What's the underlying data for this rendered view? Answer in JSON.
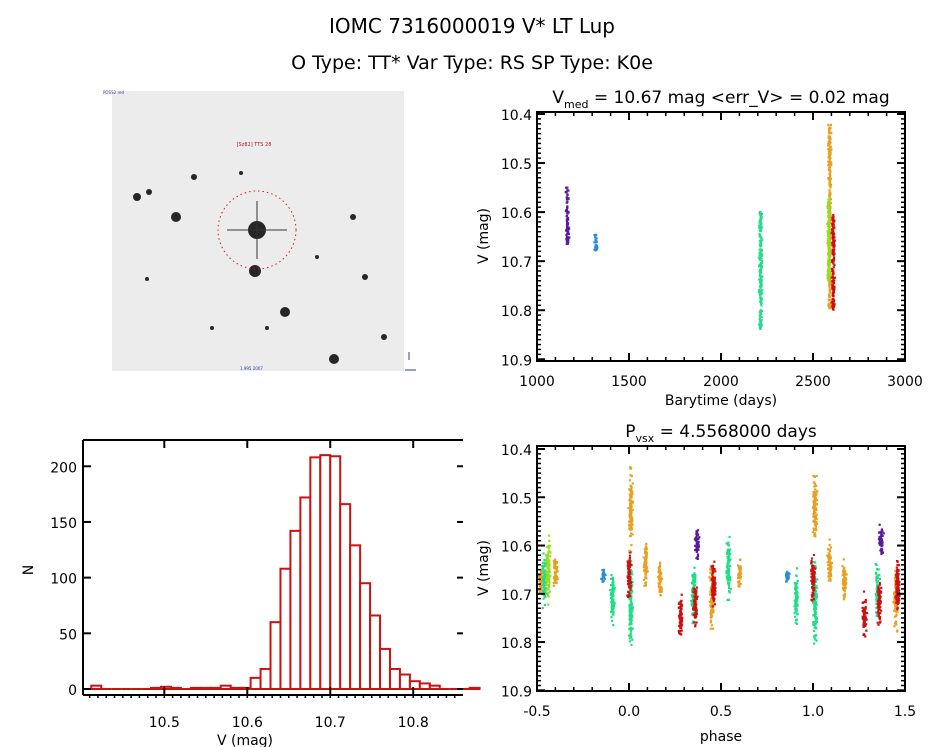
{
  "header": {
    "title_line1": "IOMC 7316000019    V* LT Lup",
    "title_line2": "O Type: TT*  Var Type: RS  SP Type: K0e"
  },
  "finder_chart": {
    "top_left_label": "POSS2 red",
    "target_label": "[Sz82] TTS 28",
    "bottom_center_label": "1.995 2007",
    "north_arrow": "N",
    "east_arrow": "E",
    "colors": {
      "circle": "#cc2020",
      "background": "#ececec"
    }
  },
  "chart_data": [
    {
      "id": "lightcurve",
      "type": "scatter",
      "title": "V_med = 10.67 mag <err_V> = 0.02 mag",
      "title_main": "V",
      "title_sub": "med",
      "title_rest": " = 10.67 mag <err_V> = 0.02 mag",
      "xlabel": "Barytime (days)",
      "ylabel": "V (mag)",
      "xlim": [
        1000,
        3000
      ],
      "ylim": [
        10.9,
        10.4
      ],
      "y_inverted": true,
      "xticks": [
        "1000",
        "1500",
        "2000",
        "2500",
        "3000"
      ],
      "yticks": [
        "10.4",
        "10.5",
        "10.6",
        "10.7",
        "10.8",
        "10.9"
      ],
      "series": [
        {
          "name": "season1",
          "color": "#5a1a9a",
          "x": 1165,
          "vmin": 10.55,
          "vmax": 10.665
        },
        {
          "name": "season2",
          "color": "#2a8fd0",
          "x": 1320,
          "vmin": 10.645,
          "vmax": 10.678
        },
        {
          "name": "season3",
          "color": "#22dd88",
          "x": 2215,
          "vmin": 10.6,
          "vmax": 10.84
        },
        {
          "name": "season4",
          "color": "#e8a020",
          "x": 2590,
          "vmin": 10.42,
          "vmax": 10.8
        },
        {
          "name": "season5",
          "color": "#99dd22",
          "x": 2585,
          "vmin": 10.57,
          "vmax": 10.74
        },
        {
          "name": "season6",
          "color": "#cc1111",
          "x": 2610,
          "vmin": 10.605,
          "vmax": 10.8
        }
      ]
    },
    {
      "id": "histogram",
      "type": "bar",
      "title": "",
      "xlabel": "V (mag)",
      "ylabel": "N",
      "xlim": [
        10.402,
        10.86
      ],
      "ylim": [
        0,
        220
      ],
      "xticks": [
        "10.5",
        "10.6",
        "10.7",
        "10.8"
      ],
      "yticks": [
        "0",
        "50",
        "100",
        "150",
        "200"
      ],
      "bin_width": 0.012,
      "bin_start": 10.412,
      "counts": [
        3,
        0,
        0,
        0,
        0,
        0,
        1,
        2,
        1,
        0,
        1,
        1,
        1,
        3,
        1,
        1,
        10,
        18,
        60,
        108,
        142,
        172,
        208,
        210,
        209,
        166,
        129,
        95,
        66,
        36,
        18,
        13,
        7,
        5,
        3,
        0,
        0,
        0,
        1
      ],
      "color": "#cc1111"
    },
    {
      "id": "phased",
      "type": "scatter",
      "title": "P_vsx = 4.5568000 days",
      "title_main": "P",
      "title_sub": "vsx",
      "title_rest": " = 4.5568000 days",
      "xlabel": "phase",
      "ylabel": "V (mag)",
      "xlim": [
        -0.5,
        1.5
      ],
      "ylim": [
        10.9,
        10.4
      ],
      "y_inverted": true,
      "xticks": [
        "-0.5",
        "0.0",
        "0.5",
        "1.0",
        "1.5"
      ],
      "yticks": [
        "10.4",
        "10.5",
        "10.6",
        "10.7",
        "10.8",
        "10.9"
      ],
      "clusters": [
        {
          "color": "#e8a020",
          "phase": -0.48,
          "vmin": 10.63,
          "vmax": 10.71
        },
        {
          "color": "#22dd88",
          "phase": -0.46,
          "vmin": 10.6,
          "vmax": 10.75
        },
        {
          "color": "#99dd22",
          "phase": -0.44,
          "vmin": 10.57,
          "vmax": 10.73
        },
        {
          "color": "#e8a020",
          "phase": -0.4,
          "vmin": 10.61,
          "vmax": 10.7
        },
        {
          "color": "#2a8fd0",
          "phase": -0.14,
          "vmin": 10.645,
          "vmax": 10.68
        },
        {
          "color": "#22dd88",
          "phase": -0.09,
          "vmin": 10.64,
          "vmax": 10.78
        },
        {
          "color": "#22dd88",
          "phase": 0.01,
          "vmin": 10.6,
          "vmax": 10.84
        },
        {
          "color": "#cc1111",
          "phase": 0.0,
          "vmin": 10.6,
          "vmax": 10.73
        },
        {
          "color": "#e8a020",
          "phase": 0.01,
          "vmin": 10.42,
          "vmax": 10.62
        },
        {
          "color": "#e8a020",
          "phase": 0.09,
          "vmin": 10.58,
          "vmax": 10.7
        },
        {
          "color": "#e8a020",
          "phase": 0.17,
          "vmin": 10.62,
          "vmax": 10.72
        },
        {
          "color": "#cc1111",
          "phase": 0.28,
          "vmin": 10.69,
          "vmax": 10.8
        },
        {
          "color": "#22dd88",
          "phase": 0.35,
          "vmin": 10.62,
          "vmax": 10.77
        },
        {
          "color": "#cc1111",
          "phase": 0.36,
          "vmin": 10.66,
          "vmax": 10.78
        },
        {
          "color": "#5a1a9a",
          "phase": 0.37,
          "vmin": 10.55,
          "vmax": 10.64
        },
        {
          "color": "#e8a020",
          "phase": 0.45,
          "vmin": 10.62,
          "vmax": 10.8
        },
        {
          "color": "#cc1111",
          "phase": 0.46,
          "vmin": 10.61,
          "vmax": 10.76
        },
        {
          "color": "#22dd88",
          "phase": 0.54,
          "vmin": 10.57,
          "vmax": 10.73
        },
        {
          "color": "#e8a020",
          "phase": 0.6,
          "vmin": 10.62,
          "vmax": 10.7
        },
        {
          "color": "#2a8fd0",
          "phase": 0.86,
          "vmin": 10.645,
          "vmax": 10.68
        },
        {
          "color": "#22dd88",
          "phase": 0.91,
          "vmin": 10.64,
          "vmax": 10.78
        },
        {
          "color": "#22dd88",
          "phase": 1.01,
          "vmin": 10.6,
          "vmax": 10.84
        },
        {
          "color": "#cc1111",
          "phase": 1.0,
          "vmin": 10.6,
          "vmax": 10.73
        },
        {
          "color": "#e8a020",
          "phase": 1.01,
          "vmin": 10.42,
          "vmax": 10.62
        },
        {
          "color": "#e8a020",
          "phase": 1.09,
          "vmin": 10.58,
          "vmax": 10.7
        },
        {
          "color": "#e8a020",
          "phase": 1.17,
          "vmin": 10.62,
          "vmax": 10.72
        },
        {
          "color": "#cc1111",
          "phase": 1.28,
          "vmin": 10.69,
          "vmax": 10.8
        },
        {
          "color": "#22dd88",
          "phase": 1.35,
          "vmin": 10.62,
          "vmax": 10.77
        },
        {
          "color": "#cc1111",
          "phase": 1.36,
          "vmin": 10.66,
          "vmax": 10.78
        },
        {
          "color": "#5a1a9a",
          "phase": 1.37,
          "vmin": 10.55,
          "vmax": 10.64
        },
        {
          "color": "#e8a020",
          "phase": 1.45,
          "vmin": 10.62,
          "vmax": 10.8
        },
        {
          "color": "#cc1111",
          "phase": 1.46,
          "vmin": 10.61,
          "vmax": 10.76
        }
      ]
    }
  ]
}
